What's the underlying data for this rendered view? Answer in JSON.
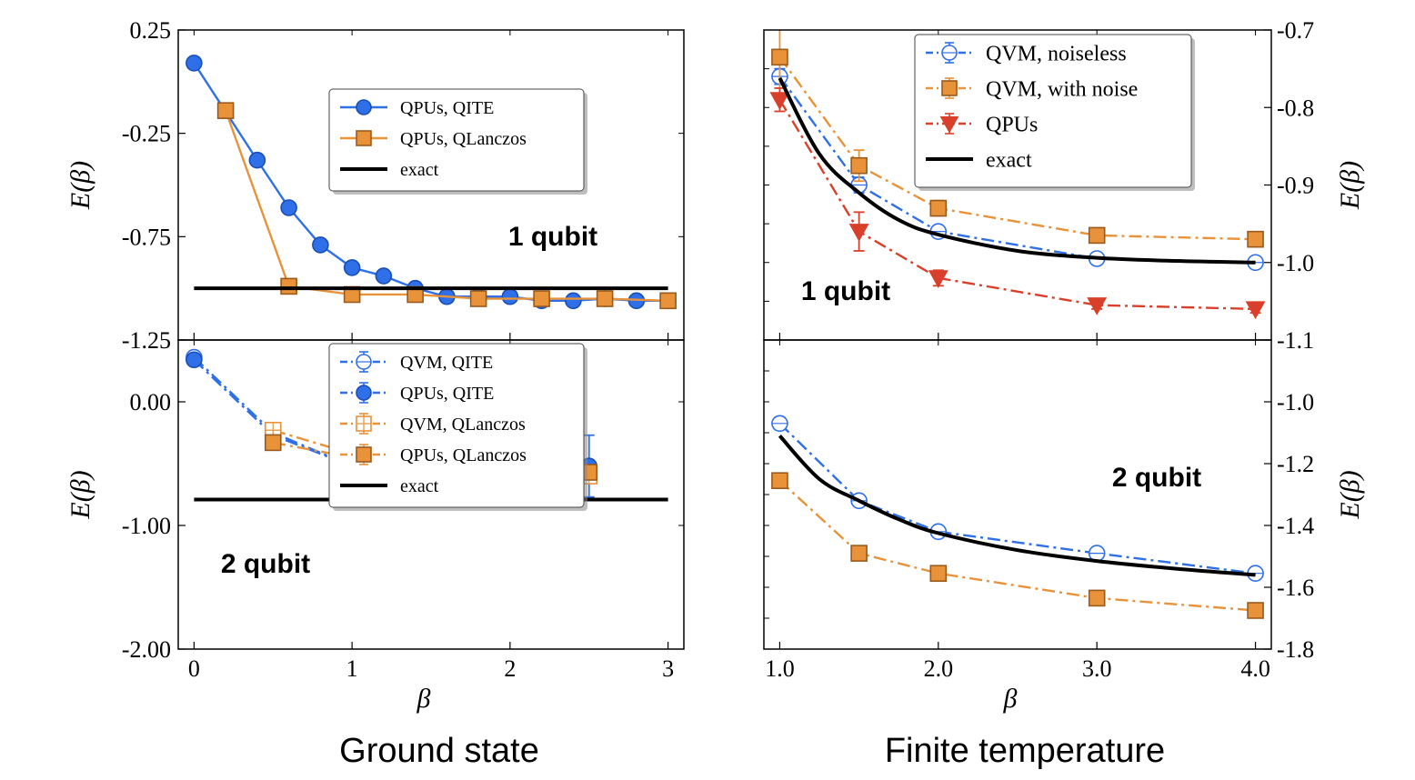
{
  "colors": {
    "blue": "#2f6fe8",
    "orange": "#e8923a",
    "red": "#d9402b",
    "black": "#000000"
  },
  "section_titles": {
    "left": "Ground state",
    "right": "Finite temperature"
  },
  "chart_data": [
    {
      "id": "gs1",
      "type": "line",
      "annotation": "1 qubit",
      "ylabel": "E(β)",
      "xlabel": "",
      "xlim": [
        -0.1,
        3.1
      ],
      "ylim": [
        -1.25,
        0.25
      ],
      "yticks": [
        0.25,
        -0.25,
        -0.75,
        -1.25
      ],
      "ytick_labels": [
        "0.25",
        "-0.25",
        "-0.75",
        "-1.25"
      ],
      "xticks": [
        0,
        1,
        2,
        3
      ],
      "xtick_labels": [],
      "legend_position": "upper-right",
      "series": [
        {
          "name": "QPUs, QITE",
          "style": "solid",
          "marker": "circle",
          "filled": true,
          "color": "blue",
          "x": [
            0,
            0.4,
            0.6,
            0.8,
            1.0,
            1.2,
            1.4,
            1.6,
            1.8,
            2.0,
            2.2,
            2.4,
            2.6,
            2.8,
            3.0
          ],
          "y": [
            0.09,
            -0.38,
            -0.61,
            -0.79,
            -0.9,
            -0.94,
            -1.0,
            -1.04,
            -1.04,
            -1.04,
            -1.06,
            -1.06,
            -1.05,
            -1.06,
            -1.06
          ]
        },
        {
          "name": "QPUs, QLanczos",
          "style": "solid",
          "marker": "square",
          "filled": true,
          "color": "orange",
          "x": [
            0.2,
            0.6,
            1.0,
            1.4,
            1.8,
            2.2,
            2.6,
            3.0
          ],
          "y": [
            -0.14,
            -0.99,
            -1.03,
            -1.03,
            -1.05,
            -1.05,
            -1.05,
            -1.06
          ]
        },
        {
          "name": "exact",
          "style": "thick",
          "marker": "none",
          "color": "black",
          "x": [
            0,
            3.0
          ],
          "y": [
            -1.0,
            -1.0
          ]
        }
      ]
    },
    {
      "id": "gs2",
      "type": "line",
      "annotation": "2 qubit",
      "ylabel": "E(β)",
      "xlabel": "β",
      "xlim": [
        -0.1,
        3.1
      ],
      "ylim": [
        -2.0,
        0.5
      ],
      "yticks": [
        0.0,
        -1.0,
        -2.0
      ],
      "ytick_labels": [
        "0.00",
        "-1.00",
        "-2.00"
      ],
      "xticks": [
        0,
        1,
        2,
        3
      ],
      "xtick_labels": [
        "0",
        "1",
        "2",
        "3"
      ],
      "legend_position": "upper-right",
      "series": [
        {
          "name": "QVM, QITE",
          "style": "dashdot",
          "marker": "circle",
          "filled": false,
          "color": "blue",
          "x": [
            0,
            0.5,
            1.0,
            1.5,
            2.0,
            2.5
          ],
          "y": [
            0.36,
            -0.25,
            -0.52,
            -0.57,
            -0.6,
            -0.6
          ],
          "err": [
            0,
            0.05,
            0.05,
            0.05,
            0.05,
            0.05
          ]
        },
        {
          "name": "QPUs, QITE",
          "style": "dashdot",
          "marker": "circle",
          "filled": true,
          "color": "blue",
          "x": [
            0,
            0.5,
            1.0,
            1.5,
            2.0,
            2.5
          ],
          "y": [
            0.34,
            -0.27,
            -0.52,
            -0.58,
            -0.53,
            -0.52
          ],
          "err": [
            0,
            0.05,
            0.12,
            0.05,
            0.12,
            0.25
          ]
        },
        {
          "name": "QVM, QLanczos",
          "style": "dashdot",
          "marker": "square",
          "filled": false,
          "color": "orange",
          "x": [
            0.5,
            1.0,
            1.5,
            2.0,
            2.5
          ],
          "y": [
            -0.23,
            -0.42,
            -0.6,
            -0.58,
            -0.6
          ],
          "err": [
            0.05,
            0.05,
            0.05,
            0.05,
            0.05
          ]
        },
        {
          "name": "QPUs, QLanczos",
          "style": "dashdot",
          "marker": "square",
          "filled": true,
          "color": "orange",
          "x": [
            0.5,
            1.0,
            1.5,
            2.0,
            2.5
          ],
          "y": [
            -0.33,
            -0.45,
            -0.58,
            -0.6,
            -0.57
          ],
          "err": [
            0.05,
            0.05,
            0.12,
            0.05,
            0.05
          ]
        },
        {
          "name": "exact",
          "style": "thick",
          "marker": "none",
          "color": "black",
          "x": [
            0,
            3.0
          ],
          "y": [
            -0.79,
            -0.79
          ]
        }
      ]
    },
    {
      "id": "ft1",
      "type": "line",
      "annotation": "1 qubit",
      "ylabel": "E(β)",
      "xlabel": "",
      "xlim": [
        0.9,
        4.1
      ],
      "ylim": [
        -1.1,
        -0.7
      ],
      "yticks": [
        -0.7,
        -0.8,
        -0.9,
        -1.0,
        -1.1
      ],
      "ytick_labels": [
        "-0.7",
        "-0.8",
        "-0.9",
        "-1.0",
        "-1.1"
      ],
      "xticks": [
        1.0,
        2.0,
        3.0,
        4.0
      ],
      "xtick_labels": [],
      "legend_position": "upper-right",
      "series": [
        {
          "name": "QVM, noiseless",
          "style": "dashdot",
          "marker": "circle",
          "filled": false,
          "color": "blue",
          "x": [
            1.0,
            1.5,
            2.0,
            3.0,
            4.0
          ],
          "y": [
            -0.76,
            -0.9,
            -0.96,
            -0.995,
            -1.0
          ],
          "err": [
            0.01,
            0.01,
            0.005,
            0.003,
            0.003
          ]
        },
        {
          "name": "QVM, with noise",
          "style": "dashdot",
          "marker": "square",
          "filled": true,
          "color": "orange",
          "x": [
            1.0,
            1.5,
            2.0,
            3.0,
            4.0
          ],
          "y": [
            -0.735,
            -0.875,
            -0.93,
            -0.965,
            -0.97
          ],
          "err": [
            0.05,
            0.02,
            0.01,
            0.005,
            0.005
          ]
        },
        {
          "name": "QPUs",
          "style": "dashdot",
          "marker": "triangle-down",
          "filled": true,
          "color": "red",
          "x": [
            1.0,
            1.5,
            2.0,
            3.0,
            4.0
          ],
          "y": [
            -0.79,
            -0.96,
            -1.02,
            -1.055,
            -1.06
          ],
          "err": [
            0.015,
            0.025,
            0.01,
            0.005,
            0.005
          ]
        },
        {
          "name": "exact",
          "style": "curve",
          "marker": "none",
          "color": "black",
          "x": [
            1.0,
            1.25,
            1.5,
            1.75,
            2.0,
            2.5,
            3.0,
            3.5,
            4.0
          ],
          "y": [
            -0.762,
            -0.86,
            -0.91,
            -0.945,
            -0.964,
            -0.985,
            -0.994,
            -0.998,
            -1.0
          ]
        }
      ]
    },
    {
      "id": "ft2",
      "type": "line",
      "annotation": "2 qubit",
      "ylabel": "E(β)",
      "xlabel": "β",
      "xlim": [
        0.9,
        4.1
      ],
      "ylim": [
        -1.8,
        -0.8
      ],
      "yticks": [
        -1.0,
        -1.2,
        -1.4,
        -1.6,
        -1.8
      ],
      "ytick_labels": [
        "-1.0",
        "-1.2",
        "-1.4",
        "-1.6",
        "-1.8"
      ],
      "xticks": [
        1.0,
        2.0,
        3.0,
        4.0
      ],
      "xtick_labels": [
        "1.0",
        "2.0",
        "3.0",
        "4.0"
      ],
      "legend_position": "none",
      "series": [
        {
          "name": "QVM, noiseless",
          "style": "dashdot",
          "marker": "circle",
          "filled": false,
          "color": "blue",
          "x": [
            1.0,
            1.5,
            2.0,
            3.0,
            4.0
          ],
          "y": [
            -1.07,
            -1.32,
            -1.42,
            -1.49,
            -1.555
          ],
          "err": [
            0.02,
            0.01,
            0.01,
            0.015,
            0.01
          ]
        },
        {
          "name": "QVM, with noise",
          "style": "dashdot",
          "marker": "square",
          "filled": true,
          "color": "orange",
          "x": [
            1.0,
            1.5,
            2.0,
            3.0,
            4.0
          ],
          "y": [
            -1.255,
            -1.49,
            -1.555,
            -1.635,
            -1.675
          ],
          "err": [
            0,
            0,
            0,
            0,
            0
          ]
        },
        {
          "name": "exact",
          "style": "curve",
          "marker": "none",
          "color": "black",
          "x": [
            1.0,
            1.25,
            1.5,
            1.75,
            2.0,
            2.5,
            3.0,
            3.5,
            4.0
          ],
          "y": [
            -1.11,
            -1.25,
            -1.32,
            -1.38,
            -1.425,
            -1.48,
            -1.515,
            -1.54,
            -1.56
          ]
        }
      ]
    }
  ]
}
